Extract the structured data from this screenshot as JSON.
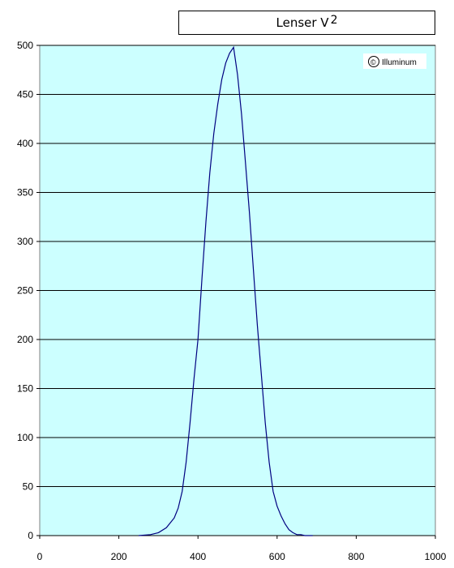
{
  "chart_data": {
    "type": "line",
    "title": "Lenser V",
    "title_superscript": "2",
    "watermark": "Illuminum",
    "watermark_symbol": "©",
    "xlim": [
      0,
      1000
    ],
    "ylim": [
      0,
      500
    ],
    "x_ticks": [
      0,
      200,
      400,
      600,
      800,
      1000
    ],
    "y_ticks": [
      0,
      50,
      100,
      150,
      200,
      250,
      300,
      350,
      400,
      450,
      500
    ],
    "grid": "horizontal",
    "legend": "none",
    "colors": {
      "plot_bg": "#ccffff",
      "line": "#000080",
      "grid": "#000000"
    },
    "series": [
      {
        "x": [
          250,
          280,
          300,
          320,
          340,
          350,
          360,
          370,
          380,
          390,
          400,
          410,
          420,
          430,
          440,
          450,
          460,
          470,
          480,
          490,
          500,
          510,
          520,
          530,
          540,
          550,
          560,
          570,
          580,
          590,
          600,
          610,
          620,
          630,
          640,
          650,
          660,
          670,
          680,
          690
        ],
        "y": [
          0,
          1,
          3,
          8,
          18,
          28,
          45,
          75,
          115,
          160,
          200,
          262,
          320,
          370,
          410,
          440,
          465,
          482,
          492,
          498,
          470,
          430,
          380,
          330,
          272,
          215,
          165,
          115,
          75,
          45,
          30,
          20,
          12,
          6,
          3,
          1,
          1,
          0,
          0,
          0
        ]
      }
    ]
  }
}
